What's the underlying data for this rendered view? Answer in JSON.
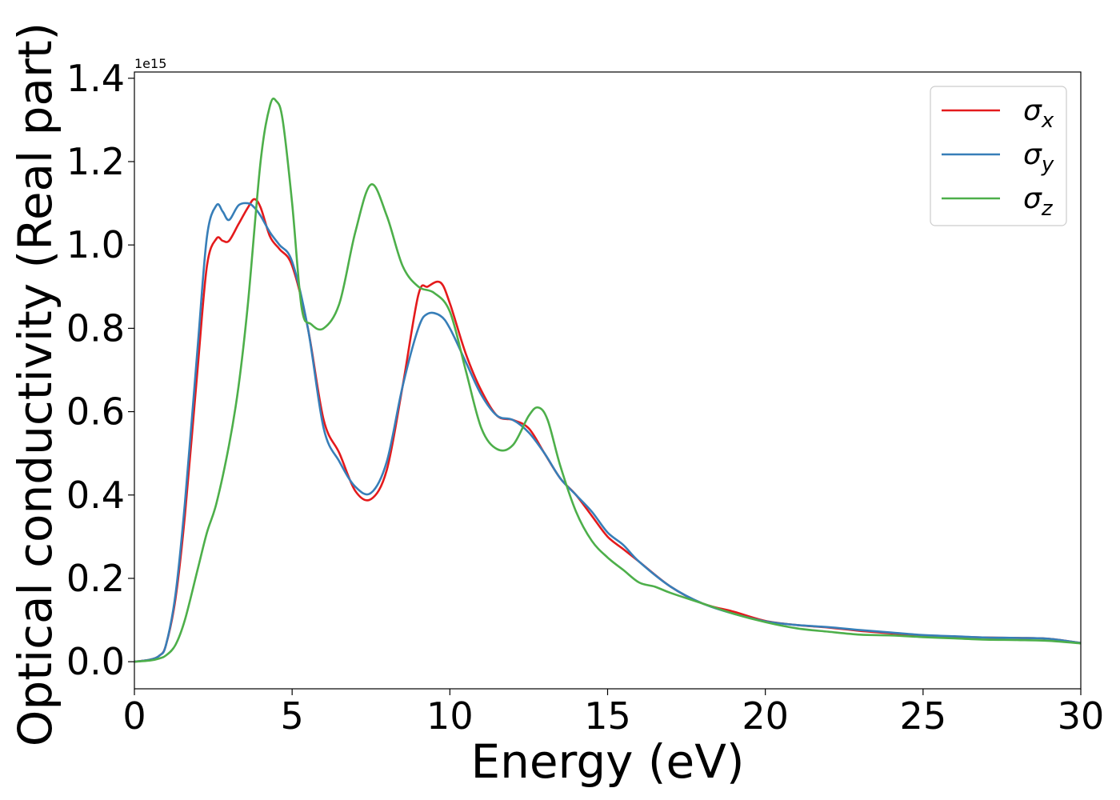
{
  "chart_data": {
    "type": "line",
    "xlabel": "Energy (eV)",
    "ylabel": "Optical conductivity (Real part)",
    "y_offset_label": "1e15",
    "xlim": [
      0,
      30
    ],
    "ylim": [
      -0.065,
      1.415
    ],
    "xticks": [
      0,
      5,
      10,
      15,
      20,
      25,
      30
    ],
    "yticks": [
      0.0,
      0.2,
      0.4,
      0.6,
      0.8,
      1.0,
      1.2,
      1.4
    ],
    "xtick_labels": [
      "0",
      "5",
      "10",
      "15",
      "20",
      "25",
      "30"
    ],
    "ytick_labels": [
      "0.0",
      "0.2",
      "0.4",
      "0.6",
      "0.8",
      "1.0",
      "1.2",
      "1.4"
    ],
    "grid": false,
    "legend_position": "top-right",
    "series": [
      {
        "name": "σx",
        "legend_symbol": "σ",
        "legend_subscript": "x",
        "color": "#e41a1c",
        "x": [
          0,
          0.5,
          0.8,
          1.0,
          1.3,
          1.6,
          2.0,
          2.3,
          2.6,
          2.8,
          3.0,
          3.3,
          3.6,
          3.8,
          4.0,
          4.3,
          4.6,
          5.0,
          5.5,
          6.0,
          6.5,
          7.0,
          7.5,
          8.0,
          8.5,
          9.0,
          9.3,
          9.7,
          10.0,
          10.5,
          11.0,
          11.5,
          12.0,
          12.5,
          13.0,
          13.5,
          14.0,
          14.5,
          15.0,
          15.5,
          16.0,
          17.0,
          18.0,
          19.0,
          20.0,
          21.0,
          22.0,
          23.0,
          24.0,
          25.0,
          26.0,
          27.0,
          28.0,
          29.0,
          30.0
        ],
        "y": [
          0.0,
          0.005,
          0.015,
          0.04,
          0.15,
          0.35,
          0.7,
          0.95,
          1.015,
          1.01,
          1.01,
          1.05,
          1.09,
          1.11,
          1.09,
          1.02,
          0.99,
          0.95,
          0.8,
          0.58,
          0.5,
          0.41,
          0.39,
          0.46,
          0.66,
          0.88,
          0.9,
          0.91,
          0.86,
          0.74,
          0.65,
          0.59,
          0.58,
          0.56,
          0.5,
          0.44,
          0.4,
          0.35,
          0.3,
          0.27,
          0.24,
          0.18,
          0.14,
          0.12,
          0.098,
          0.088,
          0.082,
          0.074,
          0.068,
          0.063,
          0.06,
          0.058,
          0.057,
          0.055,
          0.045
        ]
      },
      {
        "name": "σy",
        "legend_symbol": "σ",
        "legend_subscript": "y",
        "color": "#377eb8",
        "x": [
          0,
          0.5,
          0.8,
          1.0,
          1.3,
          1.6,
          2.0,
          2.3,
          2.6,
          2.8,
          3.0,
          3.3,
          3.6,
          3.8,
          4.0,
          4.3,
          4.6,
          5.0,
          5.5,
          6.0,
          6.5,
          7.0,
          7.5,
          8.0,
          8.5,
          9.0,
          9.3,
          9.7,
          10.0,
          10.5,
          11.0,
          11.5,
          12.0,
          12.5,
          13.0,
          13.5,
          14.0,
          14.5,
          15.0,
          15.5,
          16.0,
          17.0,
          18.0,
          19.0,
          20.0,
          21.0,
          22.0,
          23.0,
          24.0,
          25.0,
          26.0,
          27.0,
          28.0,
          29.0,
          30.0
        ],
        "y": [
          0.0,
          0.005,
          0.015,
          0.04,
          0.16,
          0.38,
          0.75,
          1.02,
          1.095,
          1.08,
          1.06,
          1.095,
          1.1,
          1.09,
          1.07,
          1.03,
          1.0,
          0.96,
          0.8,
          0.56,
          0.48,
          0.42,
          0.405,
          0.48,
          0.66,
          0.8,
          0.835,
          0.83,
          0.8,
          0.72,
          0.64,
          0.59,
          0.58,
          0.55,
          0.5,
          0.44,
          0.4,
          0.36,
          0.31,
          0.28,
          0.24,
          0.18,
          0.14,
          0.115,
          0.097,
          0.088,
          0.083,
          0.076,
          0.07,
          0.064,
          0.061,
          0.058,
          0.057,
          0.055,
          0.045
        ]
      },
      {
        "name": "σz",
        "legend_symbol": "σ",
        "legend_subscript": "z",
        "color": "#4daf4a",
        "x": [
          0,
          0.5,
          0.8,
          1.0,
          1.3,
          1.6,
          2.0,
          2.3,
          2.6,
          3.0,
          3.3,
          3.6,
          4.0,
          4.3,
          4.5,
          4.7,
          5.0,
          5.3,
          5.6,
          6.0,
          6.5,
          7.0,
          7.5,
          8.0,
          8.5,
          9.0,
          9.5,
          10.0,
          10.5,
          11.0,
          11.5,
          12.0,
          12.5,
          12.8,
          13.1,
          13.5,
          14.0,
          14.5,
          15.0,
          15.5,
          16.0,
          16.5,
          17.0,
          18.0,
          19.0,
          20.0,
          21.0,
          22.0,
          23.0,
          24.0,
          25.0,
          26.0,
          27.0,
          28.0,
          29.0,
          30.0
        ],
        "y": [
          0.0,
          0.003,
          0.008,
          0.015,
          0.04,
          0.1,
          0.22,
          0.31,
          0.38,
          0.52,
          0.66,
          0.86,
          1.2,
          1.335,
          1.345,
          1.3,
          1.1,
          0.85,
          0.81,
          0.8,
          0.86,
          1.03,
          1.145,
          1.07,
          0.95,
          0.9,
          0.885,
          0.84,
          0.7,
          0.56,
          0.51,
          0.52,
          0.59,
          0.61,
          0.58,
          0.47,
          0.36,
          0.29,
          0.25,
          0.22,
          0.19,
          0.18,
          0.165,
          0.14,
          0.115,
          0.095,
          0.08,
          0.072,
          0.065,
          0.063,
          0.059,
          0.056,
          0.053,
          0.052,
          0.05,
          0.044
        ]
      }
    ]
  }
}
